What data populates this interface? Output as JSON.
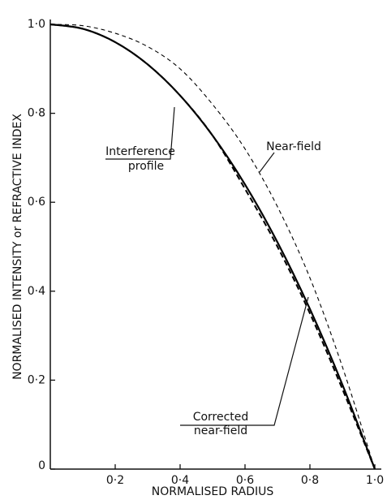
{
  "chart_data": {
    "type": "line",
    "xlabel": "NORMALISED RADIUS",
    "ylabel": "NORMALISED INTENSITY or REFRACTIVE INDEX",
    "x": [
      0,
      0.1,
      0.2,
      0.3,
      0.4,
      0.5,
      0.6,
      0.7,
      0.8,
      0.9,
      1.0
    ],
    "series": [
      {
        "label": [
          "Interference",
          "profile"
        ],
        "color": "#000000",
        "style": "solid",
        "values": [
          1.0,
          0.99,
          0.96,
          0.91,
          0.84,
          0.75,
          0.64,
          0.51,
          0.36,
          0.19,
          0.0
        ]
      },
      {
        "label": [
          "Corrected",
          "near-field"
        ],
        "color": "#000000",
        "style": "heavy-dashed",
        "values": [
          1.0,
          0.99,
          0.96,
          0.91,
          0.84,
          0.75,
          0.63,
          0.5,
          0.35,
          0.18,
          0.0
        ]
      },
      {
        "label": [
          "Near-field"
        ],
        "color": "#000000",
        "style": "dashed",
        "values": [
          1.0,
          0.997,
          0.98,
          0.95,
          0.9,
          0.82,
          0.72,
          0.59,
          0.43,
          0.23,
          0.0
        ]
      }
    ],
    "xlim": [
      0,
      1.0
    ],
    "ylim": [
      0,
      1.0
    ],
    "xticks": [
      {
        "value": 0.2,
        "label": "0·2"
      },
      {
        "value": 0.4,
        "label": "0·4"
      },
      {
        "value": 0.6,
        "label": "0·6"
      },
      {
        "value": 0.8,
        "label": "0·8"
      },
      {
        "value": 1.0,
        "label": "1·0"
      }
    ],
    "yticks": [
      0,
      {
        "value": 0.2,
        "label": "0·2"
      },
      {
        "value": 0.4,
        "label": "0·4"
      },
      {
        "value": 0.6,
        "label": "0·6"
      },
      {
        "value": 0.8,
        "label": "0·8"
      },
      {
        "value": 1.0,
        "label": "1·0"
      }
    ],
    "grid": false
  }
}
